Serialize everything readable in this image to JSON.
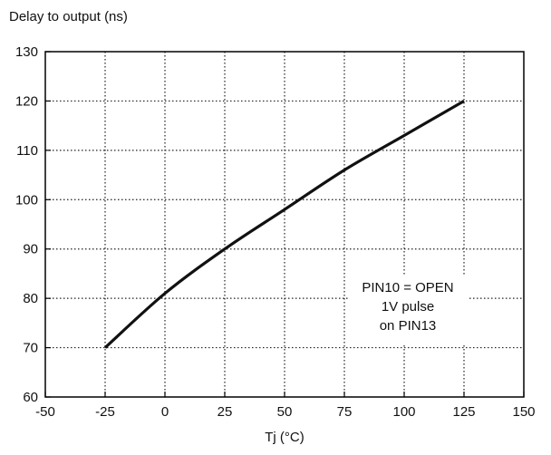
{
  "chart_data": {
    "type": "line",
    "ylabel": "Delay to output (ns)",
    "xlabel": "Tj (°C)",
    "xlim": [
      -50,
      150
    ],
    "ylim": [
      60,
      130
    ],
    "xticks": [
      -50,
      -25,
      0,
      25,
      50,
      75,
      100,
      125,
      150
    ],
    "yticks": [
      60,
      70,
      80,
      90,
      100,
      110,
      120,
      130
    ],
    "grid": true,
    "series": [
      {
        "x": [
          -25,
          0,
          25,
          50,
          75,
          100,
          125
        ],
        "y": [
          70,
          81,
          90,
          98,
          106,
          113,
          120
        ]
      }
    ],
    "annotation": {
      "lines": [
        "PIN10 = OPEN",
        "1V pulse",
        "on PIN13"
      ]
    },
    "colors": {
      "line": "#111111",
      "grid": "#222222",
      "frame": "#000000"
    }
  }
}
